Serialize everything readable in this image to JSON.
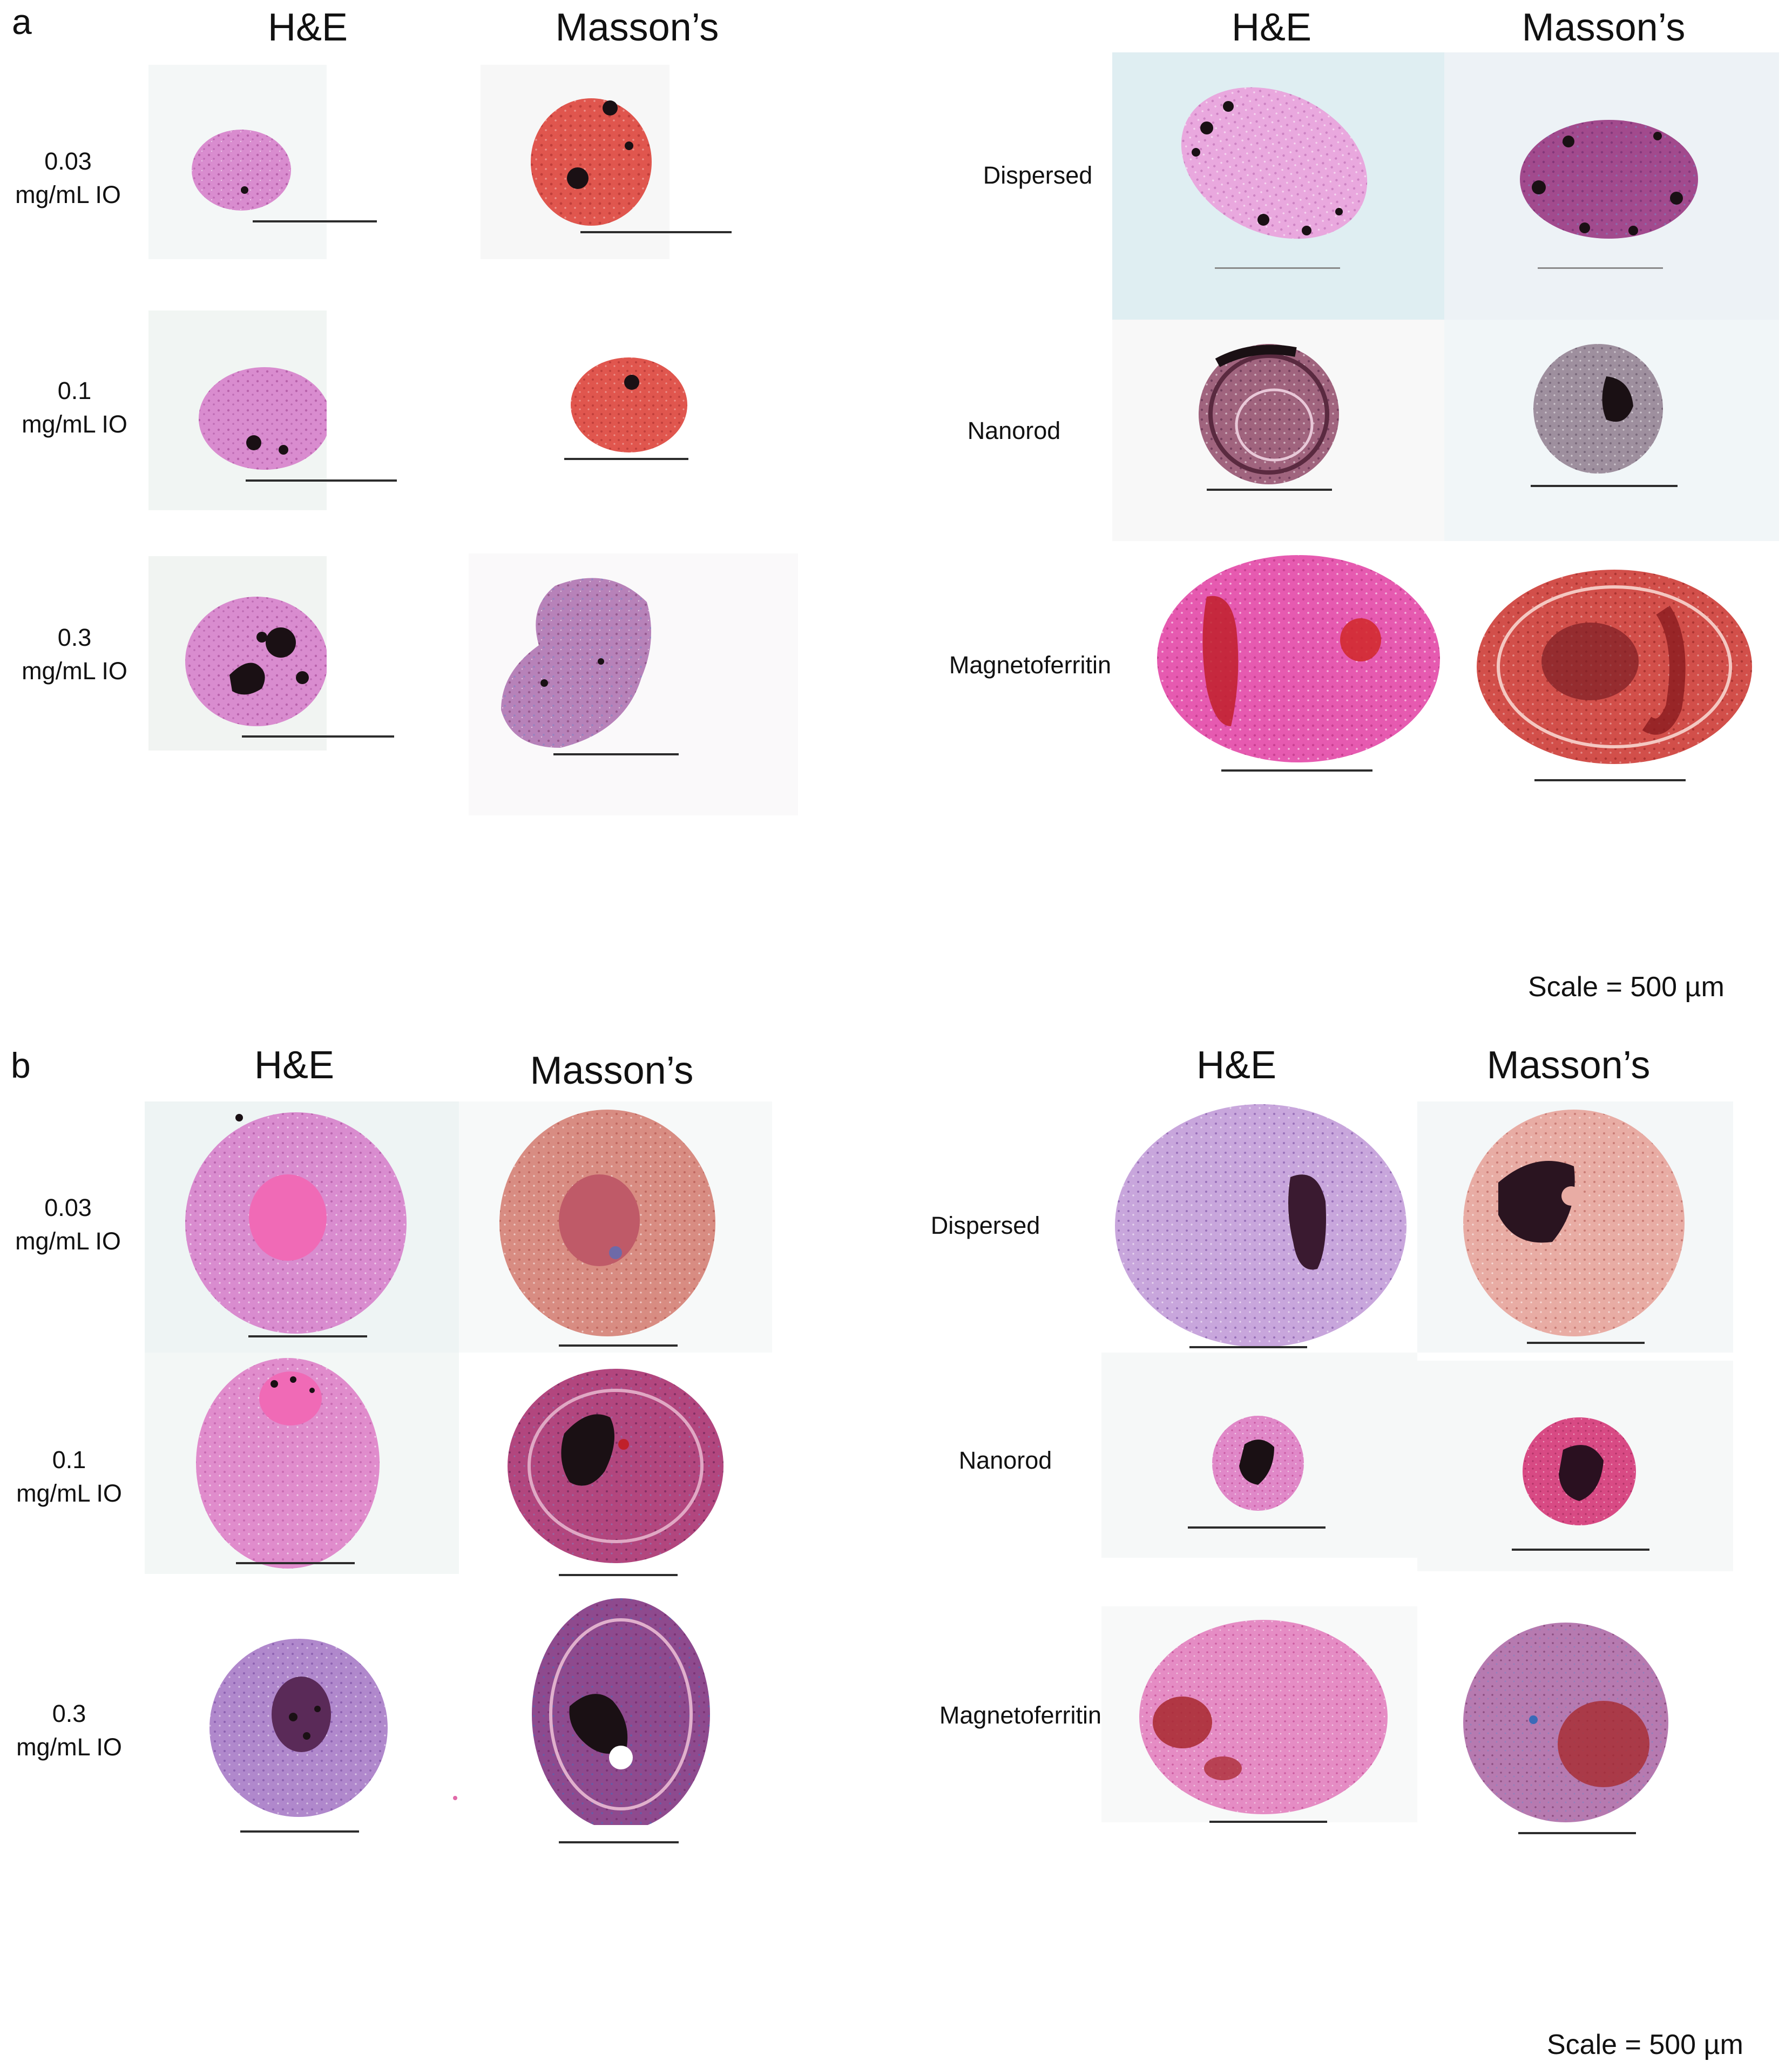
{
  "panels": [
    {
      "letter": "a",
      "columns": [
        "H&E",
        "Masson’s",
        "H&E",
        "Masson’s"
      ],
      "left_rows": [
        {
          "line1": "0.03",
          "line2": "mg/mL IO"
        },
        {
          "line1": "0.1",
          "line2": "mg/mL IO"
        },
        {
          "line1": "0.3",
          "line2": "mg/mL IO"
        }
      ],
      "right_rows": [
        "Dispersed",
        "Nanorod",
        "Magnetoferritin"
      ],
      "scale": "Scale = 500 µm"
    },
    {
      "letter": "b",
      "columns": [
        "H&E",
        "Masson’s",
        "H&E",
        "Masson’s"
      ],
      "left_rows": [
        {
          "line1": "0.03",
          "line2": "mg/mL IO"
        },
        {
          "line1": "0.1",
          "line2": "mg/mL IO"
        },
        {
          "line1": "0.3",
          "line2": "mg/mL IO"
        }
      ],
      "right_rows": [
        "Dispersed",
        "Nanorod",
        "Magnetoferritin"
      ],
      "scale": "Scale = 500 µm"
    }
  ],
  "colors": {
    "he_stain": "#d98ccf",
    "masson_stain": "#e0564e",
    "iron_oxide": "#1a1014",
    "collagen_blue": "#7a86c4",
    "background_tint": "#dfeef2"
  }
}
